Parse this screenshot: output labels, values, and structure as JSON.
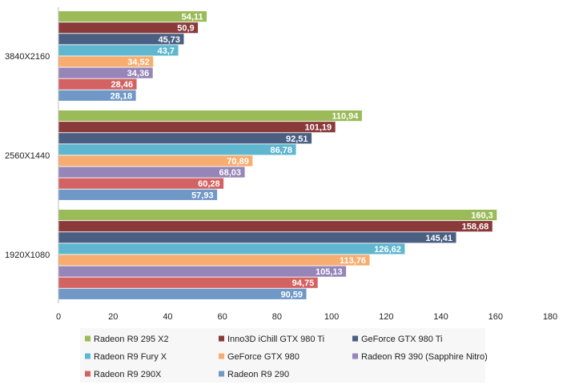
{
  "chart_data": {
    "type": "bar",
    "orientation": "horizontal",
    "title": "",
    "xlabel": "",
    "ylabel": "",
    "xlim": [
      0,
      180
    ],
    "x_ticks": [
      "0",
      "20",
      "40",
      "60",
      "80",
      "100",
      "120",
      "140",
      "160",
      "180"
    ],
    "grid": false,
    "legend_position": "bottom",
    "categories": [
      "3840X2160",
      "2560X1440",
      "1920X1080"
    ],
    "series": [
      {
        "name": "Radeon R9 295 X2",
        "color": "#9bbb59",
        "values": [
          54.11,
          110.94,
          160.3
        ],
        "labels": [
          "54,11",
          "110,94",
          "160,3"
        ]
      },
      {
        "name": "Inno3D iChill GTX 980 Ti",
        "color": "#8b3a3a",
        "values": [
          50.9,
          101.19,
          158.68
        ],
        "labels": [
          "50,9",
          "101,19",
          "158,68"
        ]
      },
      {
        "name": "GeForce GTX 980 Ti",
        "color": "#4a5f82",
        "values": [
          45.73,
          92.51,
          145.41
        ],
        "labels": [
          "45,73",
          "92,51",
          "145,41"
        ]
      },
      {
        "name": "Radeon R9 Fury X",
        "color": "#5fb7cf",
        "values": [
          43.7,
          86.78,
          126.62
        ],
        "labels": [
          "43,7",
          "86,78",
          "126,62"
        ]
      },
      {
        "name": "GeForce GTX 980",
        "color": "#f6ad6f",
        "values": [
          34.52,
          70.89,
          113.76
        ],
        "labels": [
          "34,52",
          "70,89",
          "113,76"
        ]
      },
      {
        "name": "Radeon R9 390 (Sapphire Nitro)",
        "color": "#9585b8",
        "values": [
          34.36,
          68.03,
          105.13
        ],
        "labels": [
          "34,36",
          "68,03",
          "105,13"
        ]
      },
      {
        "name": "Radeon R9 290X",
        "color": "#d36262",
        "values": [
          28.46,
          60.28,
          94.75
        ],
        "labels": [
          "28,46",
          "60,28",
          "94,75"
        ]
      },
      {
        "name": "Radeon R9 290",
        "color": "#6f98c6",
        "values": [
          28.18,
          57.93,
          90.59
        ],
        "labels": [
          "28,18",
          "57,93",
          "90,59"
        ]
      }
    ]
  }
}
